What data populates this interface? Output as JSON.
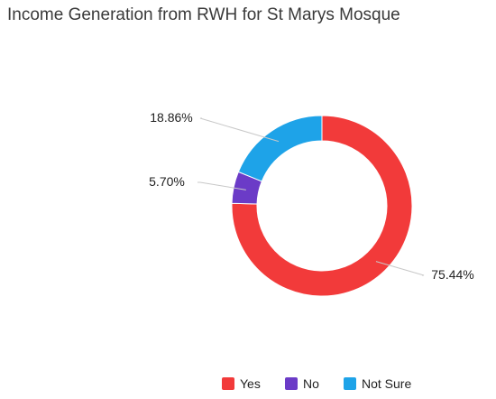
{
  "chart_data": {
    "type": "pie",
    "title": "Income Generation from RWH for St Marys Mosque",
    "categories": [
      "Yes",
      "No",
      "Not Sure"
    ],
    "values": [
      75.44,
      5.7,
      18.86
    ],
    "labels": [
      "75.44%",
      "5.70%",
      "18.86%"
    ],
    "colors": [
      "#f23a3a",
      "#6b3bc7",
      "#1ea3e8"
    ],
    "donut": true,
    "legend_position": "bottom"
  }
}
